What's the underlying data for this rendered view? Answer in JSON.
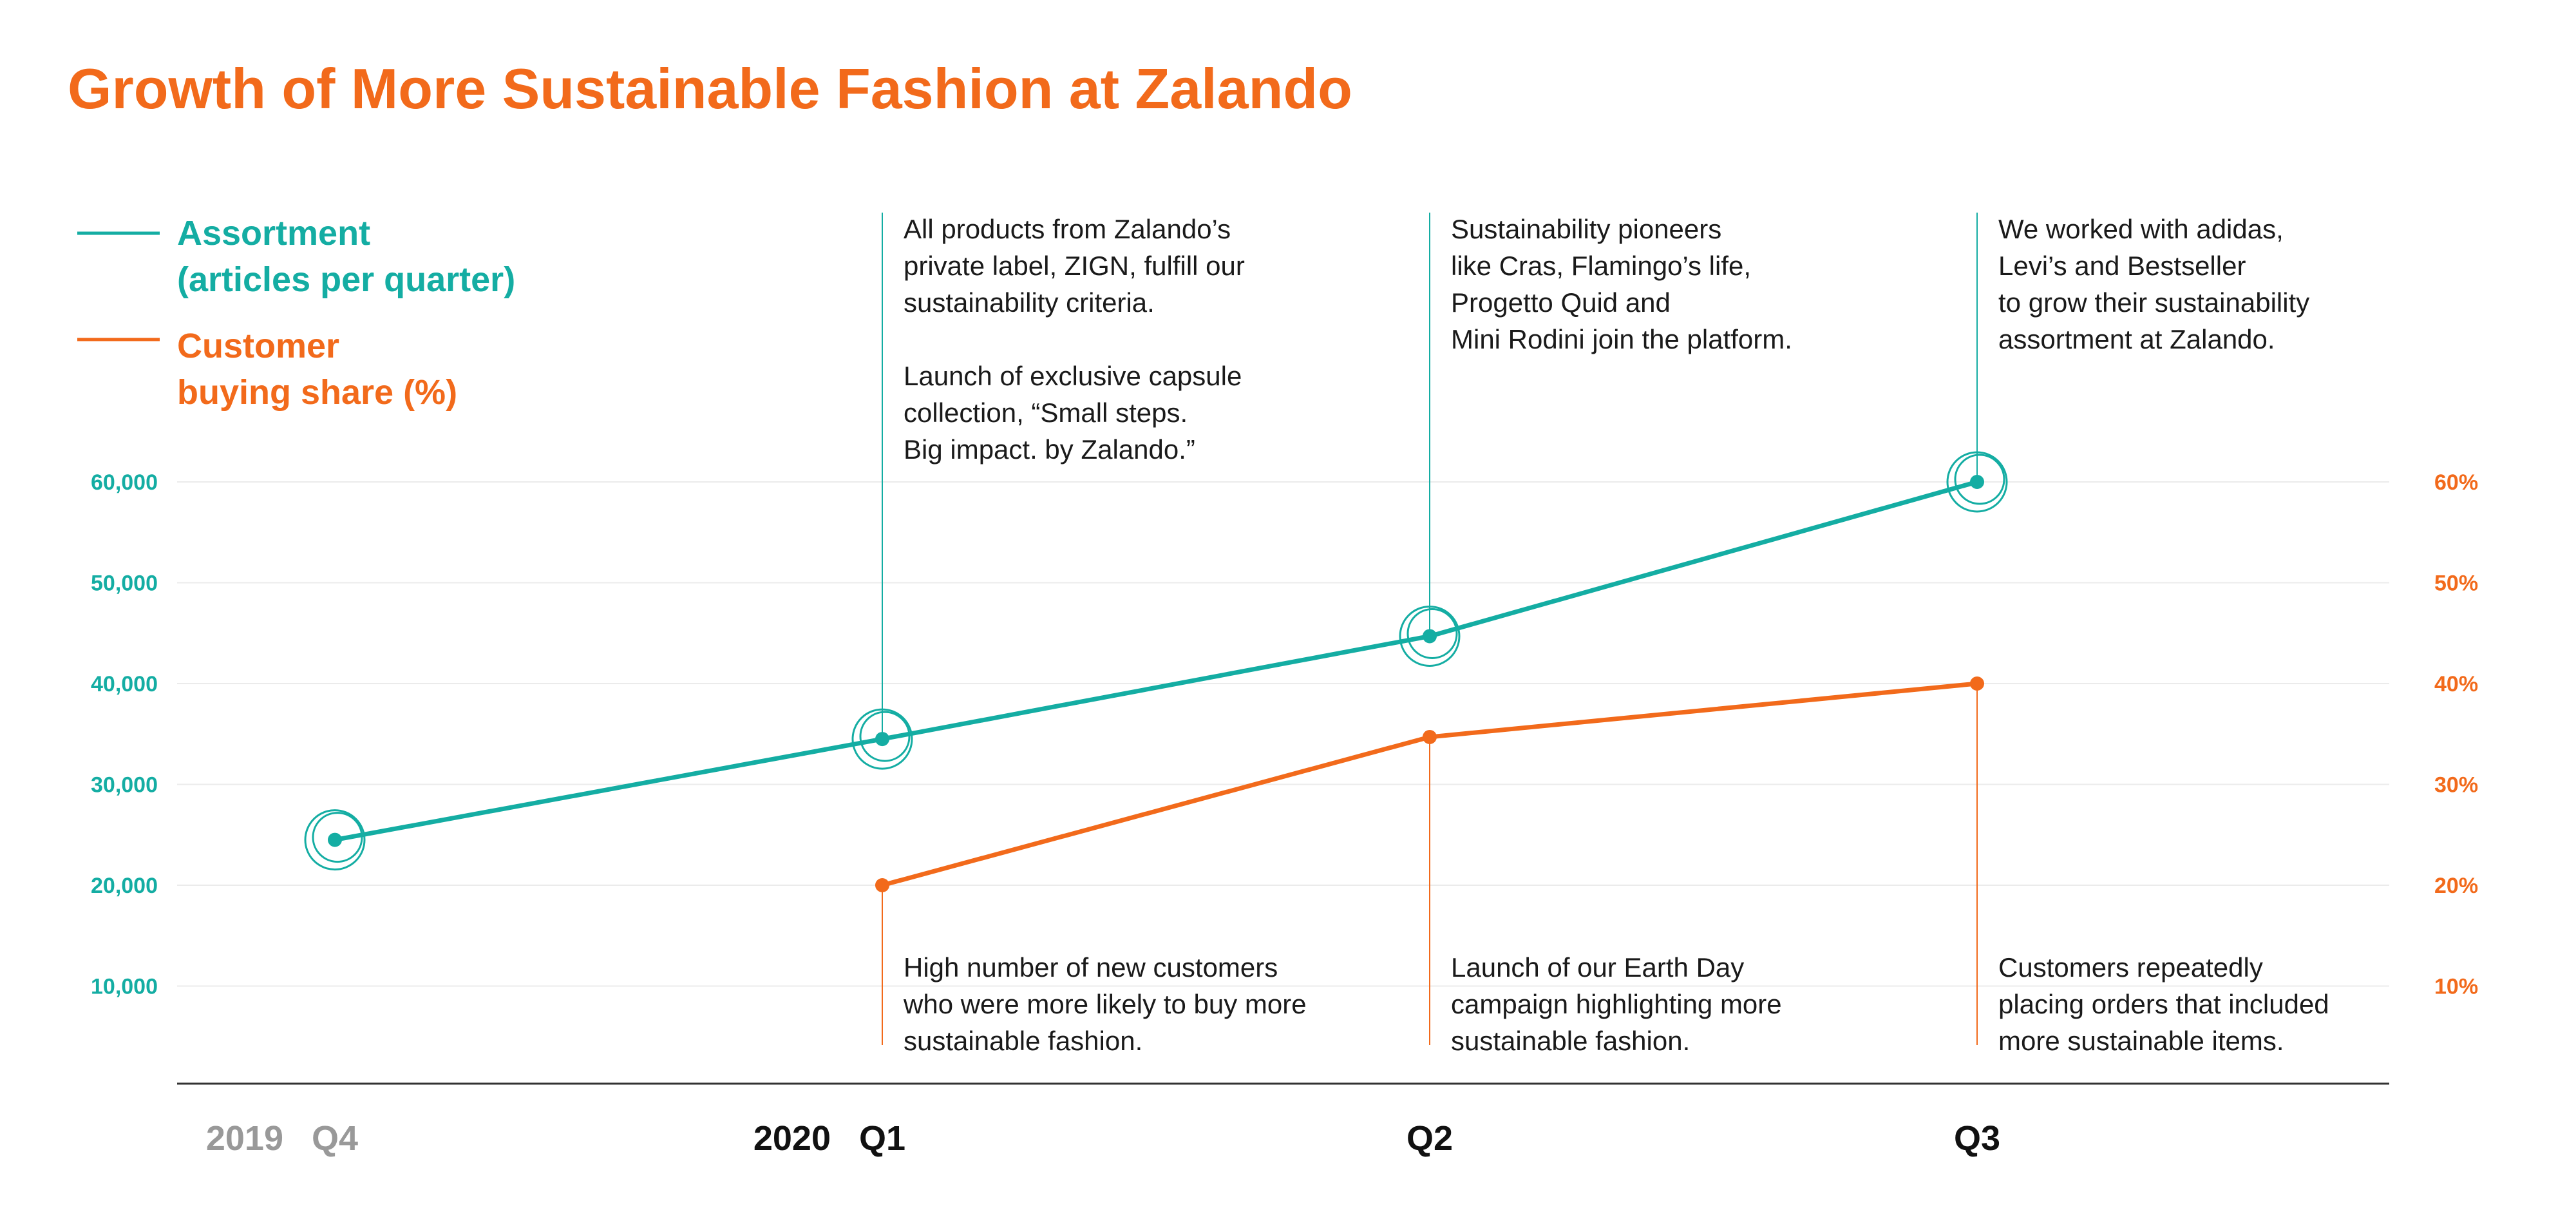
{
  "colors": {
    "assortment": "#14ADA3",
    "share": "#F26A1B",
    "title": "#F26A1B",
    "grid": "#EBEBEB",
    "axis": "#333333",
    "muted": "#999999",
    "dark": "#111111"
  },
  "chart_data": {
    "type": "line",
    "title": "Growth of More Sustainable Fashion at Zalando",
    "categories": [
      "Q4",
      "Q1",
      "Q2",
      "Q3"
    ],
    "years": [
      {
        "label": "2019",
        "at": "Q4"
      },
      {
        "label": "2020",
        "at": "Q1"
      }
    ],
    "series": [
      {
        "name": "Assortment (articles per quarter)",
        "legend_lines": [
          "Assortment",
          "(articles per quarter)"
        ],
        "axis": "left",
        "values": [
          24500,
          34500,
          44700,
          60000
        ]
      },
      {
        "name": "Customer buying share (%)",
        "legend_lines": [
          "Customer",
          "buying share (%)"
        ],
        "axis": "right",
        "values": [
          null,
          20,
          34.7,
          40
        ]
      }
    ],
    "y_left": {
      "ticks": [
        10000,
        20000,
        30000,
        40000,
        50000,
        60000
      ],
      "tick_labels": [
        "10,000",
        "20,000",
        "30,000",
        "40,000",
        "50,000",
        "60,000"
      ],
      "ylim": [
        0,
        60000
      ]
    },
    "y_right": {
      "ticks": [
        10,
        20,
        30,
        40,
        50,
        60
      ],
      "tick_labels": [
        "10%",
        "20%",
        "30%",
        "40%",
        "50%",
        "60%"
      ],
      "ylim": [
        0,
        60
      ]
    },
    "grid": true,
    "legend_position": "top-left",
    "annotations_top": [
      {
        "at": "Q1",
        "lines": [
          "All products from Zalando’s",
          "private label, ZIGN, fulfill our",
          "sustainability criteria.",
          "",
          "Launch of exclusive capsule",
          "collection, “Small steps.",
          "Big impact. by Zalando.”"
        ]
      },
      {
        "at": "Q2",
        "lines": [
          "Sustainability pioneers",
          "like Cras, Flamingo’s life,",
          "Progetto Quid and",
          "Mini Rodini join the platform."
        ]
      },
      {
        "at": "Q3",
        "lines": [
          "We worked with adidas,",
          "Levi’s and Bestseller",
          "to grow their sustainability",
          "assortment at Zalando."
        ]
      }
    ],
    "annotations_bottom": [
      {
        "at": "Q1",
        "lines": [
          "High number of new customers",
          "who were more likely to buy more",
          "sustainable fashion."
        ]
      },
      {
        "at": "Q2",
        "lines": [
          "Launch of our Earth Day",
          "campaign highlighting more",
          "sustainable fashion."
        ]
      },
      {
        "at": "Q3",
        "lines": [
          "Customers repeatedly",
          "placing orders that included",
          "more sustainable items."
        ]
      }
    ]
  }
}
